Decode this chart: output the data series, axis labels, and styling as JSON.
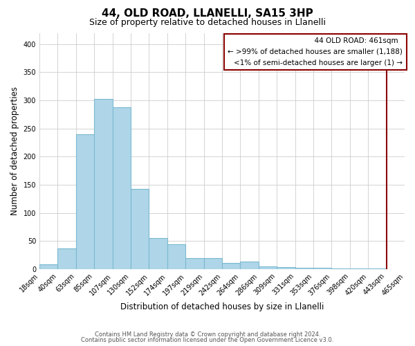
{
  "title": "44, OLD ROAD, LLANELLI, SA15 3HP",
  "subtitle": "Size of property relative to detached houses in Llanelli",
  "xlabel": "Distribution of detached houses by size in Llanelli",
  "ylabel": "Number of detached properties",
  "bar_values": [
    8,
    37,
    240,
    303,
    288,
    142,
    55,
    44,
    20,
    20,
    11,
    13,
    5,
    4,
    2,
    2,
    1,
    1,
    1
  ],
  "bar_labels": [
    "18sqm",
    "40sqm",
    "63sqm",
    "85sqm",
    "107sqm",
    "130sqm",
    "152sqm",
    "174sqm",
    "197sqm",
    "219sqm",
    "242sqm",
    "264sqm",
    "286sqm",
    "309sqm",
    "331sqm",
    "353sqm",
    "376sqm",
    "398sqm",
    "420sqm",
    "443sqm",
    "465sqm"
  ],
  "bar_color": "#aed6e8",
  "bar_edge_color": "#7ab8d0",
  "highlight_color": "#8b0000",
  "ylim": [
    0,
    420
  ],
  "yticks": [
    0,
    50,
    100,
    150,
    200,
    250,
    300,
    350,
    400
  ],
  "legend_title": "44 OLD ROAD: 461sqm",
  "legend_line1": "← >99% of detached houses are smaller (1,188)",
  "legend_line2": "<1% of semi-detached houses are larger (1) →",
  "footer1": "Contains HM Land Registry data © Crown copyright and database right 2024.",
  "footer2": "Contains public sector information licensed under the Open Government Licence v3.0.",
  "bg_color": "#ffffff",
  "grid_color": "#cccccc",
  "title_fontsize": 11,
  "subtitle_fontsize": 9,
  "axis_label_fontsize": 8.5,
  "tick_fontsize": 7,
  "legend_fontsize": 7.5,
  "footer_fontsize": 6
}
